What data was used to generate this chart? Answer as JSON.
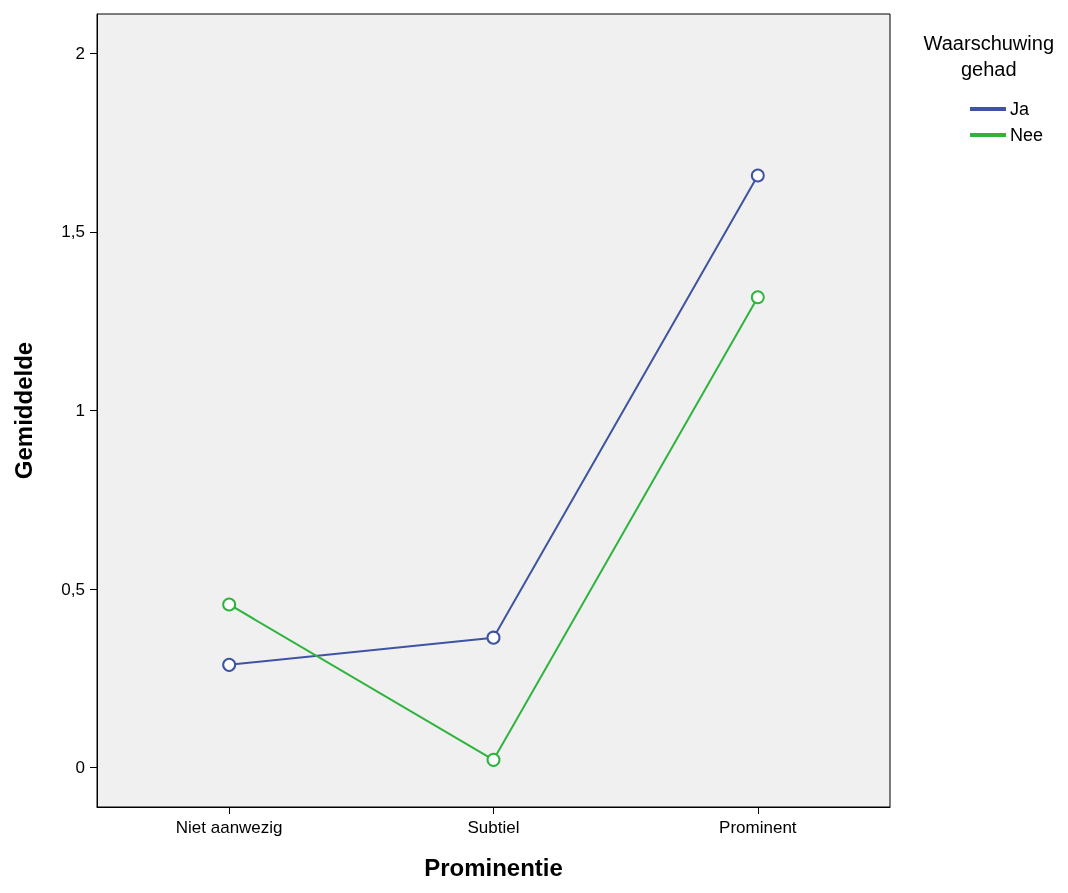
{
  "chart_data": {
    "type": "line",
    "xlabel": "Prominentie",
    "ylabel": "Gemiddelde",
    "legend_title": "Waarschuwing\ngehad",
    "categories": [
      "Niet aanwezig",
      "Subtiel",
      "Prominent"
    ],
    "series": [
      {
        "name": "Ja",
        "color": "#3e53a4",
        "values": [
          0.288,
          0.364,
          1.658
        ]
      },
      {
        "name": "Nee",
        "color": "#2db43c",
        "values": [
          0.457,
          0.022,
          1.317
        ]
      }
    ],
    "ylim": [
      -0.11,
      2.11
    ],
    "yticks": [
      0,
      {
        "value": 0.5,
        "label": "0,5"
      },
      1,
      {
        "value": 1.5,
        "label": "1,5"
      },
      2
    ],
    "grid": false,
    "legend": "right",
    "marker": "circle",
    "line_style": "solid"
  }
}
